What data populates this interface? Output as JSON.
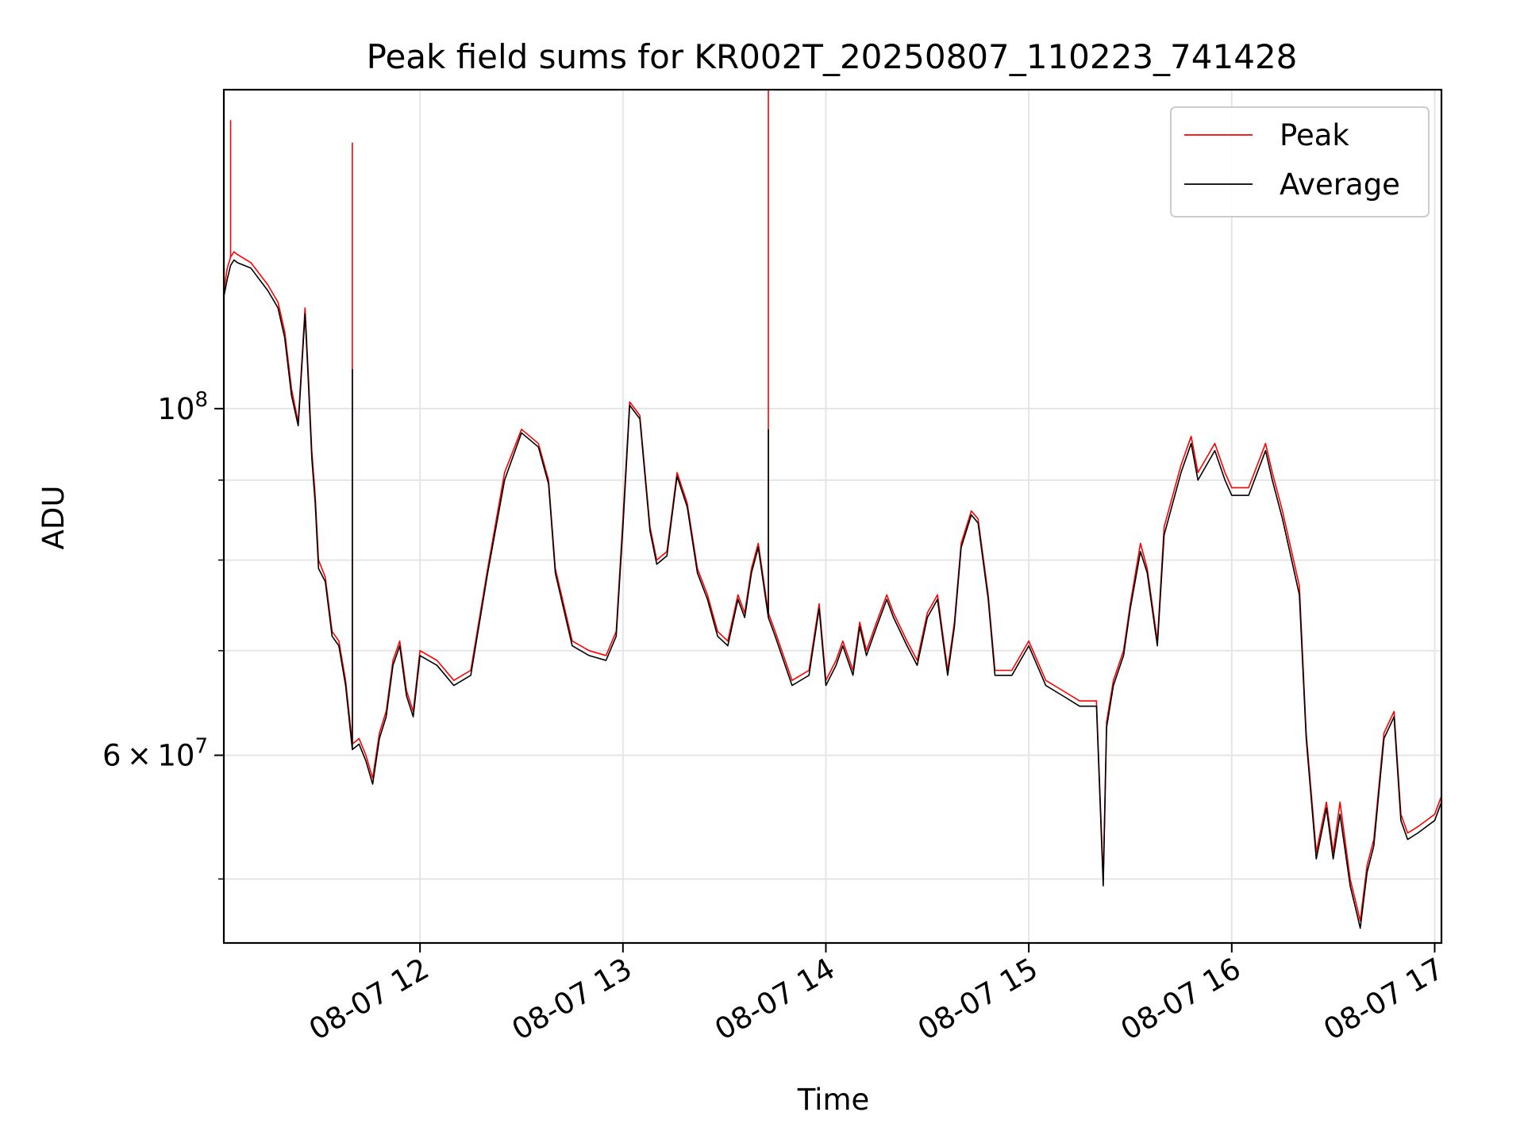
{
  "chart_data": {
    "type": "line",
    "title": "Peak field sums for KR002T_20250807_110223_741428",
    "xlabel": "Time",
    "ylabel": "ADU",
    "y_scale": "log",
    "grid": true,
    "legend_position": "top-right",
    "xlim": [
      "2025-08-07 11:02",
      "2025-08-07 17:02"
    ],
    "ylim": [
      45500000,
      160000000
    ],
    "x_ticks": [
      {
        "value": "2025-08-07 12:00",
        "label": "08-07 12"
      },
      {
        "value": "2025-08-07 13:00",
        "label": "08-07 13"
      },
      {
        "value": "2025-08-07 14:00",
        "label": "08-07 14"
      },
      {
        "value": "2025-08-07 15:00",
        "label": "08-07 15"
      },
      {
        "value": "2025-08-07 16:00",
        "label": "08-07 16"
      },
      {
        "value": "2025-08-07 17:00",
        "label": "08-07 17"
      }
    ],
    "y_ticks": [
      {
        "value": 100000000,
        "base": "10",
        "exp": "8"
      },
      {
        "value": 60000000,
        "mantissa": "6",
        "base": "10",
        "exp": "7"
      }
    ],
    "y_minor_ticks": [
      50000000,
      70000000,
      80000000,
      90000000
    ],
    "series": [
      {
        "name": "Peak",
        "color": "#ff0000",
        "x": [
          "2025-08-07 11:02",
          "2025-08-07 11:03",
          "2025-08-07 11:04",
          "2025-08-07 11:05",
          "2025-08-07 11:06",
          "2025-08-07 11:10",
          "2025-08-07 11:15",
          "2025-08-07 11:18",
          "2025-08-07 11:20",
          "2025-08-07 11:22",
          "2025-08-07 11:24",
          "2025-08-07 11:26",
          "2025-08-07 11:27",
          "2025-08-07 11:28",
          "2025-08-07 11:29",
          "2025-08-07 11:30",
          "2025-08-07 11:32",
          "2025-08-07 11:34",
          "2025-08-07 11:36",
          "2025-08-07 11:38",
          "2025-08-07 11:40",
          "2025-08-07 11:42",
          "2025-08-07 11:44",
          "2025-08-07 11:46",
          "2025-08-07 11:48",
          "2025-08-07 11:50",
          "2025-08-07 11:52",
          "2025-08-07 11:54",
          "2025-08-07 11:56",
          "2025-08-07 11:58",
          "2025-08-07 12:00",
          "2025-08-07 12:05",
          "2025-08-07 12:10",
          "2025-08-07 12:15",
          "2025-08-07 12:20",
          "2025-08-07 12:25",
          "2025-08-07 12:30",
          "2025-08-07 12:35",
          "2025-08-07 12:38",
          "2025-08-07 12:40",
          "2025-08-07 12:45",
          "2025-08-07 12:50",
          "2025-08-07 12:55",
          "2025-08-07 12:58",
          "2025-08-07 13:00",
          "2025-08-07 13:02",
          "2025-08-07 13:05",
          "2025-08-07 13:08",
          "2025-08-07 13:10",
          "2025-08-07 13:13",
          "2025-08-07 13:16",
          "2025-08-07 13:19",
          "2025-08-07 13:22",
          "2025-08-07 13:25",
          "2025-08-07 13:28",
          "2025-08-07 13:31",
          "2025-08-07 13:34",
          "2025-08-07 13:36",
          "2025-08-07 13:38",
          "2025-08-07 13:40",
          "2025-08-07 13:43",
          "2025-08-07 13:45",
          "2025-08-07 13:50",
          "2025-08-07 13:55",
          "2025-08-07 13:58",
          "2025-08-07 14:00",
          "2025-08-07 14:03",
          "2025-08-07 14:05",
          "2025-08-07 14:08",
          "2025-08-07 14:10",
          "2025-08-07 14:12",
          "2025-08-07 14:15",
          "2025-08-07 14:18",
          "2025-08-07 14:20",
          "2025-08-07 14:24",
          "2025-08-07 14:27",
          "2025-08-07 14:30",
          "2025-08-07 14:33",
          "2025-08-07 14:36",
          "2025-08-07 14:38",
          "2025-08-07 14:40",
          "2025-08-07 14:43",
          "2025-08-07 14:45",
          "2025-08-07 14:48",
          "2025-08-07 14:50",
          "2025-08-07 14:55",
          "2025-08-07 15:00",
          "2025-08-07 15:05",
          "2025-08-07 15:10",
          "2025-08-07 15:15",
          "2025-08-07 15:20",
          "2025-08-07 15:22",
          "2025-08-07 15:23",
          "2025-08-07 15:25",
          "2025-08-07 15:28",
          "2025-08-07 15:30",
          "2025-08-07 15:33",
          "2025-08-07 15:35",
          "2025-08-07 15:38",
          "2025-08-07 15:40",
          "2025-08-07 15:45",
          "2025-08-07 15:48",
          "2025-08-07 15:50",
          "2025-08-07 15:55",
          "2025-08-07 15:58",
          "2025-08-07 16:00",
          "2025-08-07 16:05",
          "2025-08-07 16:10",
          "2025-08-07 16:12",
          "2025-08-07 16:15",
          "2025-08-07 16:20",
          "2025-08-07 16:22",
          "2025-08-07 16:25",
          "2025-08-07 16:28",
          "2025-08-07 16:30",
          "2025-08-07 16:32",
          "2025-08-07 16:35",
          "2025-08-07 16:37",
          "2025-08-07 16:38",
          "2025-08-07 16:40",
          "2025-08-07 16:42",
          "2025-08-07 16:45",
          "2025-08-07 16:48",
          "2025-08-07 16:50",
          "2025-08-07 16:52",
          "2025-08-07 16:55",
          "2025-08-07 17:00",
          "2025-08-07 17:02"
        ],
        "values": [
          119000000,
          123000000,
          125000000,
          126000000,
          125500000,
          124000000,
          120000000,
          117000000,
          112000000,
          103000000,
          98000000,
          116000000,
          105000000,
          94000000,
          88000000,
          80000000,
          78000000,
          72000000,
          71000000,
          67000000,
          61000000,
          61500000,
          60000000,
          58000000,
          62000000,
          64000000,
          69000000,
          71000000,
          66000000,
          64000000,
          70000000,
          69000000,
          67000000,
          68000000,
          79000000,
          91000000,
          97000000,
          95000000,
          90000000,
          79000000,
          71000000,
          70000000,
          69500000,
          72000000,
          85000000,
          101000000,
          99000000,
          84000000,
          80000000,
          81000000,
          91000000,
          87000000,
          79000000,
          76000000,
          72000000,
          71000000,
          76000000,
          74000000,
          79000000,
          82000000,
          74000000,
          72000000,
          67000000,
          68000000,
          75000000,
          67000000,
          69000000,
          71000000,
          68000000,
          73000000,
          70000000,
          73000000,
          76000000,
          74000000,
          71000000,
          69000000,
          74000000,
          76000000,
          68000000,
          73000000,
          82000000,
          86000000,
          85000000,
          76000000,
          68000000,
          68000000,
          71000000,
          67000000,
          66000000,
          65000000,
          65000000,
          50000000,
          63000000,
          67000000,
          70000000,
          75000000,
          82000000,
          79000000,
          71000000,
          84000000,
          92000000,
          96000000,
          91000000,
          95000000,
          91000000,
          89000000,
          89000000,
          95000000,
          91000000,
          86000000,
          77000000,
          62000000,
          52000000,
          56000000,
          52000000,
          56000000,
          50000000,
          48000000,
          47000000,
          51000000,
          53000000,
          62000000,
          64000000,
          55000000,
          53500000,
          54000000,
          55000000,
          56500000
        ]
      },
      {
        "name": "Average",
        "color": "#000000",
        "x": [
          "2025-08-07 11:02",
          "2025-08-07 11:03",
          "2025-08-07 11:04",
          "2025-08-07 11:05",
          "2025-08-07 11:06",
          "2025-08-07 11:10",
          "2025-08-07 11:15",
          "2025-08-07 11:18",
          "2025-08-07 11:20",
          "2025-08-07 11:22",
          "2025-08-07 11:24",
          "2025-08-07 11:26",
          "2025-08-07 11:27",
          "2025-08-07 11:28",
          "2025-08-07 11:29",
          "2025-08-07 11:30",
          "2025-08-07 11:32",
          "2025-08-07 11:34",
          "2025-08-07 11:36",
          "2025-08-07 11:38",
          "2025-08-07 11:40",
          "2025-08-07 11:42",
          "2025-08-07 11:44",
          "2025-08-07 11:46",
          "2025-08-07 11:48",
          "2025-08-07 11:50",
          "2025-08-07 11:52",
          "2025-08-07 11:54",
          "2025-08-07 11:56",
          "2025-08-07 11:58",
          "2025-08-07 12:00",
          "2025-08-07 12:05",
          "2025-08-07 12:10",
          "2025-08-07 12:15",
          "2025-08-07 12:20",
          "2025-08-07 12:25",
          "2025-08-07 12:30",
          "2025-08-07 12:35",
          "2025-08-07 12:38",
          "2025-08-07 12:40",
          "2025-08-07 12:45",
          "2025-08-07 12:50",
          "2025-08-07 12:55",
          "2025-08-07 12:58",
          "2025-08-07 13:00",
          "2025-08-07 13:02",
          "2025-08-07 13:05",
          "2025-08-07 13:08",
          "2025-08-07 13:10",
          "2025-08-07 13:13",
          "2025-08-07 13:16",
          "2025-08-07 13:19",
          "2025-08-07 13:22",
          "2025-08-07 13:25",
          "2025-08-07 13:28",
          "2025-08-07 13:31",
          "2025-08-07 13:34",
          "2025-08-07 13:36",
          "2025-08-07 13:38",
          "2025-08-07 13:40",
          "2025-08-07 13:43",
          "2025-08-07 13:45",
          "2025-08-07 13:50",
          "2025-08-07 13:55",
          "2025-08-07 13:58",
          "2025-08-07 14:00",
          "2025-08-07 14:03",
          "2025-08-07 14:05",
          "2025-08-07 14:08",
          "2025-08-07 14:10",
          "2025-08-07 14:12",
          "2025-08-07 14:15",
          "2025-08-07 14:18",
          "2025-08-07 14:20",
          "2025-08-07 14:24",
          "2025-08-07 14:27",
          "2025-08-07 14:30",
          "2025-08-07 14:33",
          "2025-08-07 14:36",
          "2025-08-07 14:38",
          "2025-08-07 14:40",
          "2025-08-07 14:43",
          "2025-08-07 14:45",
          "2025-08-07 14:48",
          "2025-08-07 14:50",
          "2025-08-07 14:55",
          "2025-08-07 15:00",
          "2025-08-07 15:05",
          "2025-08-07 15:10",
          "2025-08-07 15:15",
          "2025-08-07 15:20",
          "2025-08-07 15:22",
          "2025-08-07 15:23",
          "2025-08-07 15:25",
          "2025-08-07 15:28",
          "2025-08-07 15:30",
          "2025-08-07 15:33",
          "2025-08-07 15:35",
          "2025-08-07 15:38",
          "2025-08-07 15:40",
          "2025-08-07 15:45",
          "2025-08-07 15:48",
          "2025-08-07 15:50",
          "2025-08-07 15:55",
          "2025-08-07 15:58",
          "2025-08-07 16:00",
          "2025-08-07 16:05",
          "2025-08-07 16:10",
          "2025-08-07 16:12",
          "2025-08-07 16:15",
          "2025-08-07 16:20",
          "2025-08-07 16:22",
          "2025-08-07 16:25",
          "2025-08-07 16:28",
          "2025-08-07 16:30",
          "2025-08-07 16:32",
          "2025-08-07 16:35",
          "2025-08-07 16:37",
          "2025-08-07 16:38",
          "2025-08-07 16:40",
          "2025-08-07 16:42",
          "2025-08-07 16:45",
          "2025-08-07 16:48",
          "2025-08-07 16:50",
          "2025-08-07 16:52",
          "2025-08-07 16:55",
          "2025-08-07 17:00",
          "2025-08-07 17:02"
        ],
        "values": [
          118000000,
          121000000,
          123500000,
          124500000,
          124000000,
          123000000,
          119000000,
          116000000,
          111000000,
          102000000,
          97500000,
          115000000,
          104000000,
          93000000,
          87000000,
          79000000,
          77500000,
          71500000,
          70500000,
          66500000,
          60500000,
          61000000,
          59500000,
          57500000,
          61500000,
          63500000,
          68500000,
          70500000,
          65500000,
          63500000,
          69500000,
          68500000,
          66500000,
          67500000,
          78500000,
          90000000,
          96500000,
          94500000,
          89500000,
          78500000,
          70500000,
          69500000,
          69000000,
          71500000,
          84000000,
          100500000,
          98500000,
          83500000,
          79500000,
          80500000,
          90500000,
          86500000,
          78500000,
          75500000,
          71500000,
          70500000,
          75500000,
          73500000,
          78500000,
          81500000,
          73500000,
          71500000,
          66500000,
          67500000,
          74500000,
          66500000,
          68500000,
          70500000,
          67500000,
          72500000,
          69500000,
          72500000,
          75500000,
          73500000,
          70500000,
          68500000,
          73500000,
          75500000,
          67500000,
          72500000,
          81500000,
          85500000,
          84500000,
          75500000,
          67500000,
          67500000,
          70500000,
          66500000,
          65500000,
          64500000,
          64500000,
          49500000,
          62500000,
          66500000,
          69500000,
          74500000,
          81000000,
          78500000,
          70500000,
          83000000,
          91000000,
          95000000,
          90000000,
          94000000,
          90000000,
          88000000,
          88000000,
          94000000,
          90000000,
          85000000,
          76000000,
          61500000,
          51500000,
          55500000,
          51500000,
          55000000,
          49500000,
          47500000,
          46500000,
          50500000,
          52500000,
          61500000,
          63500000,
          54500000,
          53000000,
          53500000,
          54500000,
          56000000
        ]
      }
    ],
    "spikes": [
      {
        "series": "Peak",
        "x": "2025-08-07 11:04",
        "value": 153000000
      },
      {
        "series": "Peak",
        "x": "2025-08-07 11:40",
        "value": 148000000
      },
      {
        "series": "Average",
        "x": "2025-08-07 11:40",
        "value": 106000000
      },
      {
        "series": "Peak",
        "x": "2025-08-07 13:43",
        "value": 160000000
      },
      {
        "series": "Average",
        "x": "2025-08-07 13:43",
        "value": 97000000
      }
    ]
  }
}
